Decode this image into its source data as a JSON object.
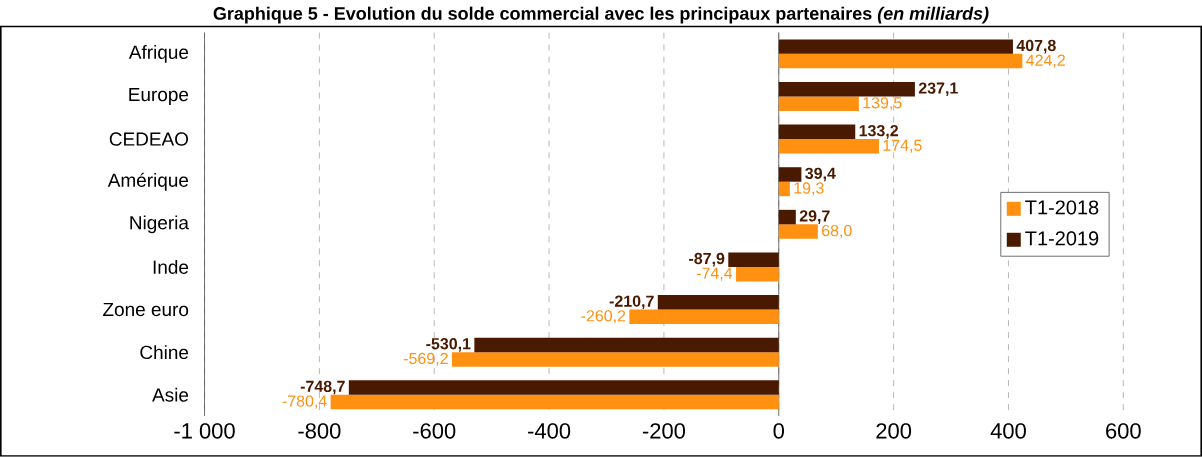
{
  "chart_data": {
    "type": "bar",
    "orientation": "horizontal",
    "title": "Graphique 5 - Evolution du solde commercial avec les principaux partenaires *(en milliards)*",
    "categories": [
      "Afrique",
      "Europe",
      "CEDEAO",
      "Amérique",
      "Nigeria",
      "Inde",
      "Zone euro",
      "Chine",
      "Asie"
    ],
    "series": [
      {
        "name": "T1-2018",
        "color": "#ff9010",
        "values": [
          424.2,
          139.5,
          174.5,
          19.3,
          68.0,
          -74.4,
          -260.2,
          -569.2,
          -780.4
        ],
        "value_labels": [
          "424,2",
          "139,5",
          "174,5",
          "19,3",
          "68,0",
          "-74,4",
          "-260,2",
          "-569,2",
          "-780,4"
        ]
      },
      {
        "name": "T1-2019",
        "color": "#4a1a00",
        "values": [
          407.8,
          237.1,
          133.2,
          39.4,
          29.7,
          -87.9,
          -210.7,
          -530.1,
          -748.7
        ],
        "value_labels": [
          "407,8",
          "237,1",
          "133,2",
          "39,4",
          "29,7",
          "-87,9",
          "-210,7",
          "-530,1",
          "-748,7"
        ]
      }
    ],
    "xlim": [
      -1000,
      600
    ],
    "xticks": [
      {
        "value": -1000,
        "label": "-1 000"
      },
      -800,
      -600,
      -400,
      -200,
      0,
      200,
      400,
      600
    ],
    "grid": "x",
    "legend": "right"
  }
}
